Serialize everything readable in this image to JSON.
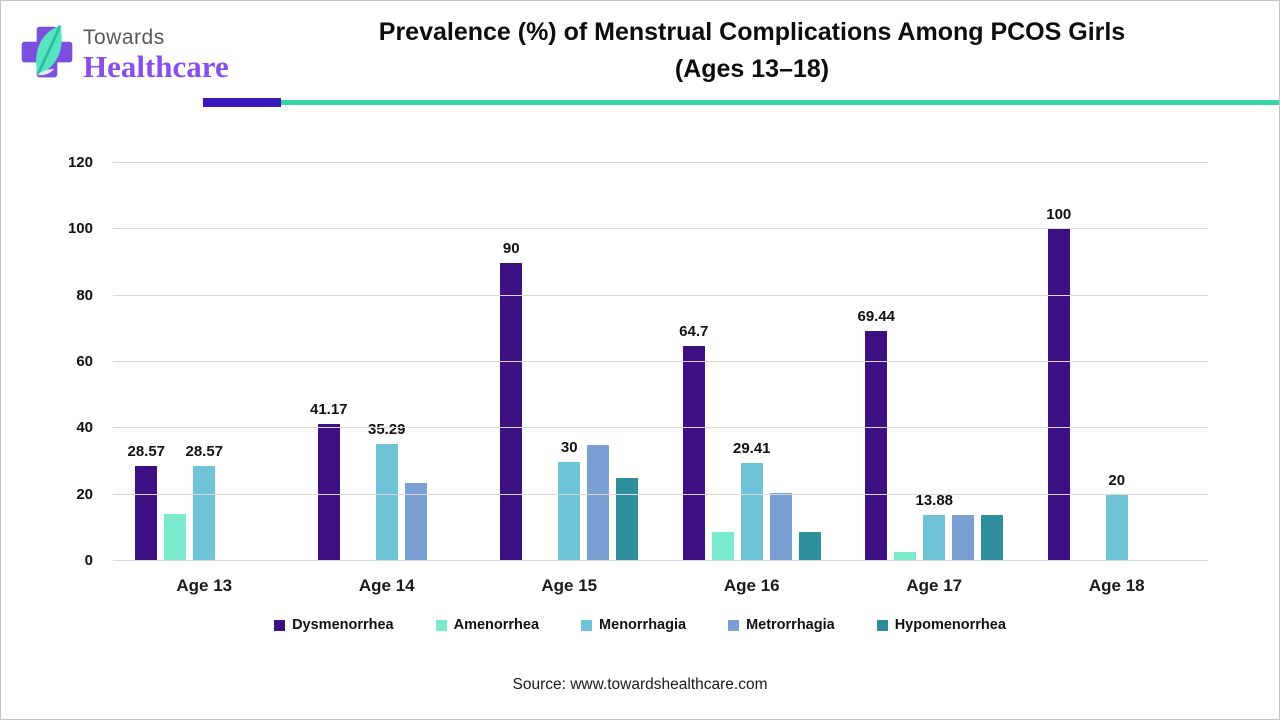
{
  "logo": {
    "line1": "Towards",
    "line2": "Healthcare"
  },
  "title": {
    "line1": "Prevalence (%) of Menstrual Complications Among PCOS Girls",
    "line2": "(Ages 13–18)"
  },
  "source": "Source: www.towardshealthcare.com",
  "colors": {
    "divider_indigo": "#3A18BC",
    "divider_teal": "#35D6A8",
    "logo_cross_purple": "#7C4FE0",
    "logo_leaf_mint": "#55E6C1",
    "logo_leaf_dark": "#2BBFa0",
    "logo_text_purple": "#8A4FE8",
    "gridline": "#D9D9D9"
  },
  "chart_data": {
    "type": "bar",
    "title": "Prevalence (%) of Menstrual Complications Among PCOS Girls (Ages 13–18)",
    "categories": [
      "Age 13",
      "Age 14",
      "Age 15",
      "Age 16",
      "Age 17",
      "Age 18"
    ],
    "series": [
      {
        "name": "Dysmenorrhea",
        "color": "#3C1083",
        "values": [
          28.57,
          41.17,
          90,
          64.7,
          69.44,
          100
        ],
        "data_labels": [
          "28.57",
          "41.17",
          "90",
          "64.7",
          "69.44",
          "100"
        ]
      },
      {
        "name": "Amenorrhea",
        "color": "#7BEACD",
        "values": [
          14.28,
          0,
          0,
          8.82,
          2.77,
          0
        ],
        "data_labels": null
      },
      {
        "name": "Menorrhagia",
        "color": "#6EC4D6",
        "values": [
          28.57,
          35.29,
          30,
          29.41,
          13.88,
          20
        ],
        "data_labels": [
          "28.57",
          "35.29",
          "30",
          "29.41",
          "13.88",
          "20"
        ]
      },
      {
        "name": "Metrorrhagia",
        "color": "#7AA0D3",
        "values": [
          0,
          23.52,
          35,
          20.58,
          13.88,
          0
        ],
        "data_labels": null
      },
      {
        "name": "Hypomenorrhea",
        "color": "#2F8E9C",
        "values": [
          0,
          0,
          25,
          8.82,
          13.88,
          0
        ],
        "data_labels": null
      }
    ],
    "ylim": [
      0,
      120
    ],
    "yticks": [
      0,
      20,
      40,
      60,
      80,
      100,
      120
    ],
    "grid": true,
    "legend_position": "bottom",
    "xlabel": "",
    "ylabel": ""
  }
}
